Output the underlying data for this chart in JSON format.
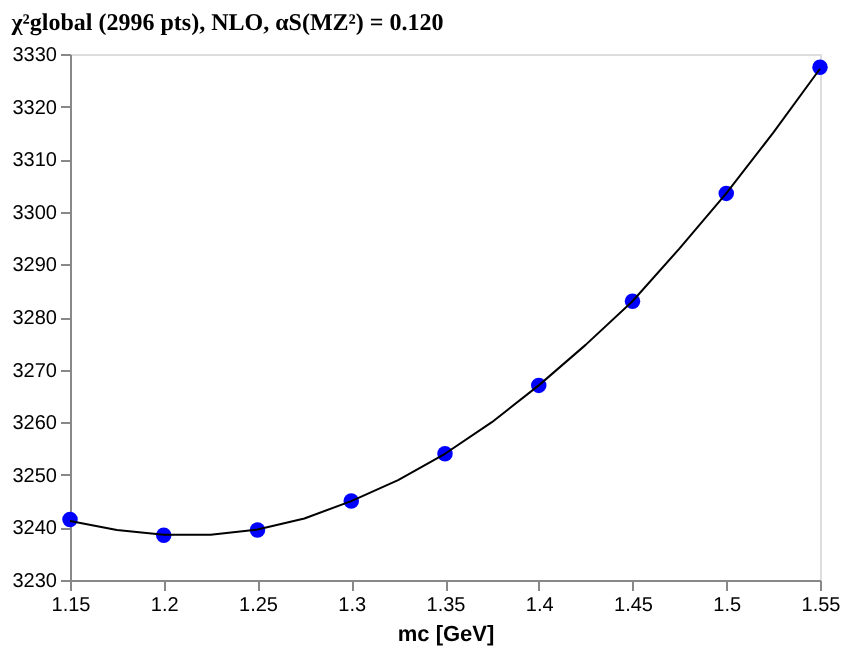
{
  "chart_data": {
    "type": "scatter",
    "title": "χ²global (2996 pts), NLO, αS(MZ²) = 0.120",
    "xlabel": "mc [GeV]",
    "x": [
      1.15,
      1.2,
      1.25,
      1.3,
      1.35,
      1.4,
      1.45,
      1.5,
      1.55
    ],
    "series": [
      {
        "type": "scatter",
        "color": "#0000ff",
        "marker": "circle",
        "values": [
          3241.5,
          3238.5,
          3239.5,
          3245,
          3254,
          3267,
          3283,
          3303.5,
          3327.5
        ]
      },
      {
        "type": "line",
        "color": "#000000",
        "line_style": "solid",
        "x": [
          1.15,
          1.175,
          1.2,
          1.225,
          1.25,
          1.275,
          1.3,
          1.325,
          1.35,
          1.375,
          1.4,
          1.425,
          1.45,
          1.475,
          1.5,
          1.525,
          1.55
        ],
        "values": [
          3241.2,
          3239.5,
          3238.6,
          3238.6,
          3239.6,
          3241.7,
          3245,
          3249,
          3254,
          3260,
          3267,
          3274.7,
          3283,
          3293,
          3303.5,
          3315,
          3327.2
        ]
      }
    ],
    "xlim": [
      1.15,
      1.55
    ],
    "xticks": [
      1.15,
      1.2,
      1.25,
      1.3,
      1.35,
      1.4,
      1.45,
      1.5,
      1.55
    ],
    "ylim": [
      3230,
      3330
    ],
    "yticks": [
      3230,
      3240,
      3250,
      3260,
      3270,
      3280,
      3290,
      3300,
      3310,
      3320,
      3330
    ],
    "grid": false
  }
}
